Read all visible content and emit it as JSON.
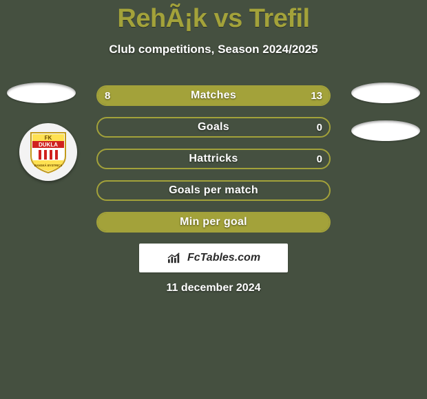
{
  "title": "RehÃ¡k vs Trefil",
  "subtitle": "Club competitions, Season 2024/2025",
  "date": "11 december 2024",
  "attribution": "FcTables.com",
  "colors": {
    "page_bg": "#455040",
    "accent": "#a3a23a",
    "bar_text": "#ffffff",
    "attr_bg": "#ffffff",
    "attr_text": "#2a2a2a"
  },
  "badge": {
    "top_text": "FK",
    "mid_text": "DUKLA",
    "bottom_text": "BANSKÁ BYSTRICA",
    "ring_color": "#f3f3f3",
    "shield_top_color": "#ffe152",
    "shield_band_color": "#d0211f",
    "shield_mid_color": "#ffffff",
    "shield_bars_color": "#d0211f",
    "shield_border": "#c29a1a"
  },
  "bars": [
    {
      "label": "Matches",
      "left": "8",
      "right": "13",
      "left_pct": 38,
      "right_pct": 62
    },
    {
      "label": "Goals",
      "left": null,
      "right": "0",
      "left_pct": 0,
      "right_pct": 0
    },
    {
      "label": "Hattricks",
      "left": null,
      "right": "0",
      "left_pct": 0,
      "right_pct": 0
    },
    {
      "label": "Goals per match",
      "left": null,
      "right": null,
      "left_pct": 0,
      "right_pct": 0
    },
    {
      "label": "Min per goal",
      "left": null,
      "right": null,
      "left_pct": 100,
      "right_pct": 0
    }
  ]
}
